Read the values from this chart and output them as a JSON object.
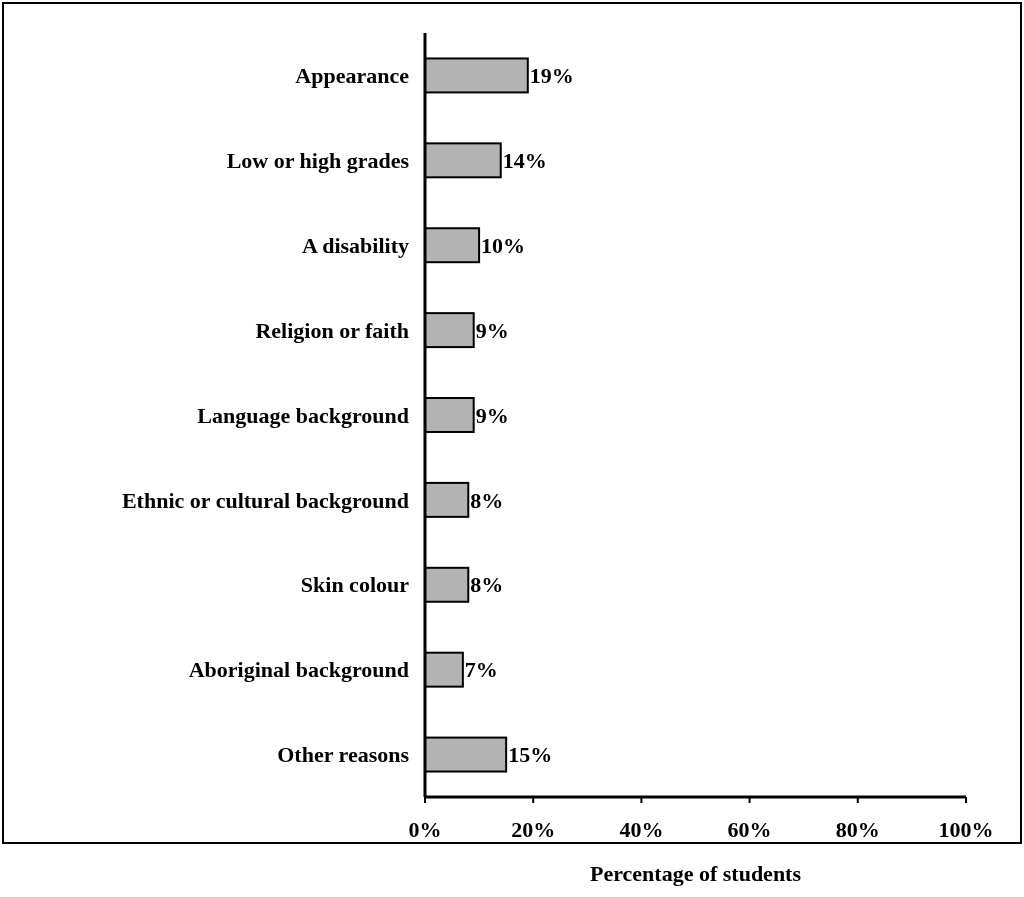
{
  "chart_data": {
    "type": "bar",
    "orientation": "horizontal",
    "xlabel": "Percentage of students",
    "categories": [
      "Appearance",
      "Low or high grades",
      "A disability",
      "Religion or faith",
      "Language background",
      "Ethnic or cultural background",
      "Skin colour",
      "Aboriginal background",
      "Other reasons"
    ],
    "values": [
      19,
      14,
      10,
      9,
      9,
      8,
      8,
      7,
      15
    ],
    "color": "#b3b3b3",
    "value_labels": [
      "19%",
      "14%",
      "10%",
      "9%",
      "9%",
      "8%",
      "8%",
      "7%",
      "15%"
    ],
    "xlim": [
      0,
      100
    ],
    "xticks": [
      {
        "value": 0,
        "label": "0%"
      },
      {
        "value": 20,
        "label": "20%"
      },
      {
        "value": 40,
        "label": "40%"
      },
      {
        "value": 60,
        "label": "60%"
      },
      {
        "value": 80,
        "label": "80%"
      },
      {
        "value": 100,
        "label": "100%"
      }
    ],
    "grid": false
  }
}
